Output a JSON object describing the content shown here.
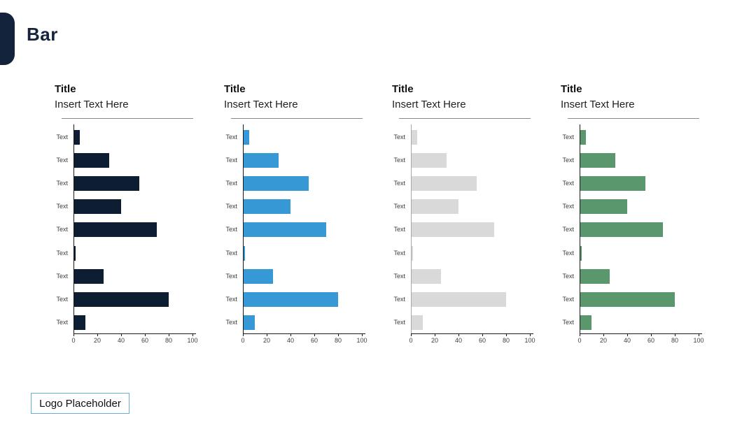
{
  "page": {
    "title": "Bar"
  },
  "logo": {
    "label": "Logo Placeholder"
  },
  "colors": {
    "accent_navy": "#13233C",
    "bar_navy": "#0E1E32",
    "bar_blue": "#3699D5",
    "bar_gray": "#D9D9D9",
    "bar_green": "#5B976C",
    "logo_border_blue": "#64AEDC"
  },
  "chart_data": [
    {
      "type": "bar",
      "orientation": "horizontal",
      "title": "Title",
      "subtitle": "Insert Text Here",
      "categories": [
        "Text",
        "Text",
        "Text",
        "Text",
        "Text",
        "Text",
        "Text",
        "Text",
        "Text"
      ],
      "values": [
        5,
        30,
        55,
        40,
        70,
        2,
        25,
        80,
        10
      ],
      "xlim": [
        0,
        100
      ],
      "xticks": [
        0,
        20,
        40,
        60,
        80,
        100
      ],
      "bar_color": "#0E1E32",
      "axis_color": "#1a1a1a",
      "legend": "none",
      "grid": "off"
    },
    {
      "type": "bar",
      "orientation": "horizontal",
      "title": "Title",
      "subtitle": "Insert Text Here",
      "categories": [
        "Text",
        "Text",
        "Text",
        "Text",
        "Text",
        "Text",
        "Text",
        "Text",
        "Text"
      ],
      "values": [
        5,
        30,
        55,
        40,
        70,
        2,
        25,
        80,
        10
      ],
      "xlim": [
        0,
        100
      ],
      "xticks": [
        0,
        20,
        40,
        60,
        80,
        100
      ],
      "bar_color": "#3699D5",
      "axis_color": "#1a1a1a",
      "legend": "none",
      "grid": "off"
    },
    {
      "type": "bar",
      "orientation": "horizontal",
      "title": "Title",
      "subtitle": "Insert Text Here",
      "categories": [
        "Text",
        "Text",
        "Text",
        "Text",
        "Text",
        "Text",
        "Text",
        "Text",
        "Text"
      ],
      "values": [
        5,
        30,
        55,
        40,
        70,
        2,
        25,
        80,
        10
      ],
      "xlim": [
        0,
        100
      ],
      "xticks": [
        0,
        20,
        40,
        60,
        80,
        100
      ],
      "bar_color": "#D9D9D9",
      "axis_color": "#A6A6A6",
      "legend": "none",
      "grid": "off"
    },
    {
      "type": "bar",
      "orientation": "horizontal",
      "title": "Title",
      "subtitle": "Insert Text Here",
      "categories": [
        "Text",
        "Text",
        "Text",
        "Text",
        "Text",
        "Text",
        "Text",
        "Text",
        "Text"
      ],
      "values": [
        5,
        30,
        55,
        40,
        70,
        2,
        25,
        80,
        10
      ],
      "xlim": [
        0,
        100
      ],
      "xticks": [
        0,
        20,
        40,
        60,
        80,
        100
      ],
      "bar_color": "#5B976C",
      "axis_color": "#1a1a1a",
      "legend": "none",
      "grid": "off"
    }
  ]
}
